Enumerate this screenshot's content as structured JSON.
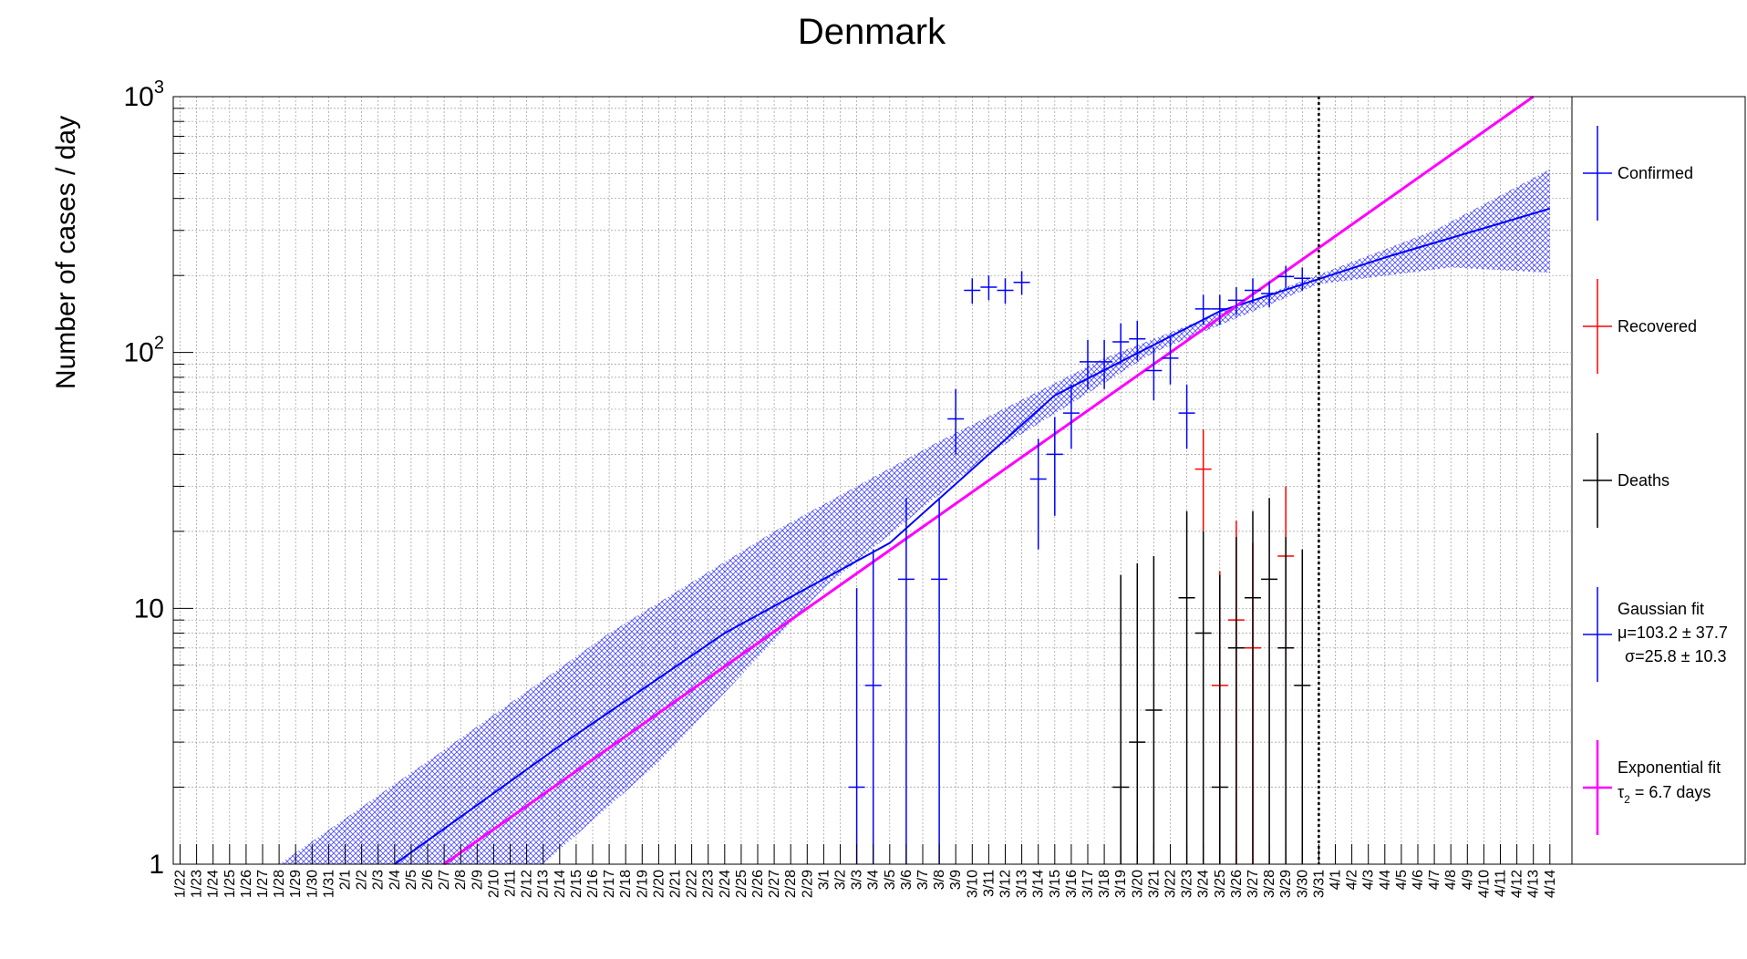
{
  "chart_data": {
    "type": "scatter",
    "title": "Denmark",
    "ylabel": "Number of cases / day",
    "xlabel": "",
    "y_scale": "log",
    "ylim": [
      1,
      1000
    ],
    "y_tick_labels": [
      "1",
      "10",
      "10",
      "10"
    ],
    "y_tick_exponents": [
      "",
      "",
      "2",
      "3"
    ],
    "grid": true,
    "categories": [
      "1/22",
      "1/23",
      "1/24",
      "1/25",
      "1/26",
      "1/27",
      "1/28",
      "1/29",
      "1/30",
      "1/31",
      "2/1",
      "2/2",
      "2/3",
      "2/4",
      "2/5",
      "2/6",
      "2/7",
      "2/8",
      "2/9",
      "2/10",
      "2/11",
      "2/12",
      "2/13",
      "2/14",
      "2/15",
      "2/16",
      "2/17",
      "2/18",
      "2/19",
      "2/20",
      "2/21",
      "2/22",
      "2/23",
      "2/24",
      "2/25",
      "2/26",
      "2/27",
      "2/28",
      "2/29",
      "3/1",
      "3/2",
      "3/3",
      "3/4",
      "3/5",
      "3/6",
      "3/7",
      "3/8",
      "3/9",
      "3/10",
      "3/11",
      "3/12",
      "3/13",
      "3/14",
      "3/15",
      "3/16",
      "3/17",
      "3/18",
      "3/19",
      "3/20",
      "3/21",
      "3/22",
      "3/23",
      "3/24",
      "3/25",
      "3/26",
      "3/27",
      "3/28",
      "3/29",
      "3/30",
      "3/31",
      "4/1",
      "4/2",
      "4/3",
      "4/4",
      "4/5",
      "4/6",
      "4/7",
      "4/8",
      "4/9",
      "4/10",
      "4/11",
      "4/12",
      "4/13",
      "4/14"
    ],
    "current_date_marker": "3/31",
    "series": [
      {
        "name": "Confirmed",
        "color": "#0000ff",
        "points": [
          {
            "x": "3/3",
            "y": 2,
            "err": [
              0,
              12
            ]
          },
          {
            "x": "3/4",
            "y": 5,
            "err": [
              0,
              17
            ]
          },
          {
            "x": "3/6",
            "y": 13,
            "err": [
              0,
              27
            ]
          },
          {
            "x": "3/8",
            "y": 13,
            "err": [
              0,
              27
            ]
          },
          {
            "x": "3/9",
            "y": 55,
            "err": [
              40,
              72
            ]
          },
          {
            "x": "3/10",
            "y": 175,
            "err": [
              155,
              195
            ]
          },
          {
            "x": "3/11",
            "y": 180,
            "err": [
              160,
              200
            ]
          },
          {
            "x": "3/12",
            "y": 175,
            "err": [
              155,
              195
            ]
          },
          {
            "x": "3/13",
            "y": 188,
            "err": [
              168,
              208
            ]
          },
          {
            "x": "3/14",
            "y": 32,
            "err": [
              17,
              46
            ]
          },
          {
            "x": "3/15",
            "y": 40,
            "err": [
              23,
              56
            ]
          },
          {
            "x": "3/16",
            "y": 58,
            "err": [
              42,
              75
            ]
          },
          {
            "x": "3/17",
            "y": 92,
            "err": [
              72,
              112
            ]
          },
          {
            "x": "3/18",
            "y": 92,
            "err": [
              72,
              112
            ]
          },
          {
            "x": "3/19",
            "y": 110,
            "err": [
              90,
              130
            ]
          },
          {
            "x": "3/20",
            "y": 113,
            "err": [
              93,
              133
            ]
          },
          {
            "x": "3/21",
            "y": 85,
            "err": [
              65,
              105
            ]
          },
          {
            "x": "3/22",
            "y": 95,
            "err": [
              75,
              115
            ]
          },
          {
            "x": "3/23",
            "y": 58,
            "err": [
              42,
              75
            ]
          },
          {
            "x": "3/24",
            "y": 148,
            "err": [
              128,
              168
            ]
          },
          {
            "x": "3/25",
            "y": 148,
            "err": [
              128,
              168
            ]
          },
          {
            "x": "3/26",
            "y": 160,
            "err": [
              140,
              180
            ]
          },
          {
            "x": "3/27",
            "y": 175,
            "err": [
              155,
              195
            ]
          },
          {
            "x": "3/28",
            "y": 170,
            "err": [
              150,
              190
            ]
          },
          {
            "x": "3/29",
            "y": 198,
            "err": [
              178,
              218
            ]
          },
          {
            "x": "3/30",
            "y": 195,
            "err": [
              175,
              215
            ]
          }
        ]
      },
      {
        "name": "Recovered",
        "color": "#ff0000",
        "points": [
          {
            "x": "3/24",
            "y": 35,
            "err": [
              20,
              50
            ]
          },
          {
            "x": "3/25",
            "y": 5,
            "err": [
              0,
              14
            ]
          },
          {
            "x": "3/26",
            "y": 9,
            "err": [
              0,
              22
            ]
          },
          {
            "x": "3/27",
            "y": 7,
            "err": [
              0,
              18
            ]
          },
          {
            "x": "3/29",
            "y": 16,
            "err": [
              3,
              30
            ]
          }
        ]
      },
      {
        "name": "Deaths",
        "color": "#000000",
        "points": [
          {
            "x": "3/19",
            "y": 2,
            "err": [
              0,
              13.5
            ]
          },
          {
            "x": "3/20",
            "y": 3,
            "err": [
              0,
              15
            ]
          },
          {
            "x": "3/21",
            "y": 4,
            "err": [
              0,
              16
            ]
          },
          {
            "x": "3/23",
            "y": 11,
            "err": [
              0,
              24
            ]
          },
          {
            "x": "3/24",
            "y": 8,
            "err": [
              0,
              20
            ]
          },
          {
            "x": "3/25",
            "y": 2,
            "err": [
              0,
              13.5
            ]
          },
          {
            "x": "3/26",
            "y": 7,
            "err": [
              0,
              19
            ]
          },
          {
            "x": "3/27",
            "y": 11,
            "err": [
              0,
              24
            ]
          },
          {
            "x": "3/28",
            "y": 13,
            "err": [
              0,
              27
            ]
          },
          {
            "x": "3/29",
            "y": 7,
            "err": [
              0,
              19
            ]
          },
          {
            "x": "3/30",
            "y": 5,
            "err": [
              0,
              17
            ]
          }
        ]
      }
    ],
    "fits": [
      {
        "name": "Gaussian fit",
        "label_lines": [
          "Gaussian fit",
          "μ=103.2 ± 37.7",
          "σ=25.8 ± 10.3"
        ],
        "color": "#0000ff",
        "curve": [
          {
            "x": "2/4",
            "y": 1.0
          },
          {
            "x": "2/14",
            "y": 2.9
          },
          {
            "x": "2/24",
            "y": 8.0
          },
          {
            "x": "3/5",
            "y": 18
          },
          {
            "x": "3/15",
            "y": 68
          },
          {
            "x": "3/25",
            "y": 145
          },
          {
            "x": "4/4",
            "y": 235
          },
          {
            "x": "4/14",
            "y": 365
          }
        ],
        "band_upper": [
          {
            "x": "1/28",
            "y": 1.0
          },
          {
            "x": "2/7",
            "y": 2.8
          },
          {
            "x": "2/17",
            "y": 8.0
          },
          {
            "x": "2/27",
            "y": 20
          },
          {
            "x": "3/8",
            "y": 45
          },
          {
            "x": "3/18",
            "y": 95
          },
          {
            "x": "3/28",
            "y": 170
          },
          {
            "x": "4/7",
            "y": 300
          },
          {
            "x": "4/14",
            "y": 520
          }
        ],
        "band_lower": [
          {
            "x": "2/13",
            "y": 1.0
          },
          {
            "x": "2/20",
            "y": 2.5
          },
          {
            "x": "3/1",
            "y": 12
          },
          {
            "x": "3/11",
            "y": 40
          },
          {
            "x": "3/21",
            "y": 100
          },
          {
            "x": "3/31",
            "y": 185
          },
          {
            "x": "4/8",
            "y": 215
          },
          {
            "x": "4/14",
            "y": 205
          }
        ]
      },
      {
        "name": "Exponential fit",
        "label_lines": [
          "Exponential fit",
          "τ",
          "2",
          " = 6.7 days"
        ],
        "color": "#ff00ff",
        "curve": [
          {
            "x": "2/7",
            "y": 1.0
          },
          {
            "x": "4/13",
            "y": 1000
          }
        ]
      }
    ]
  }
}
